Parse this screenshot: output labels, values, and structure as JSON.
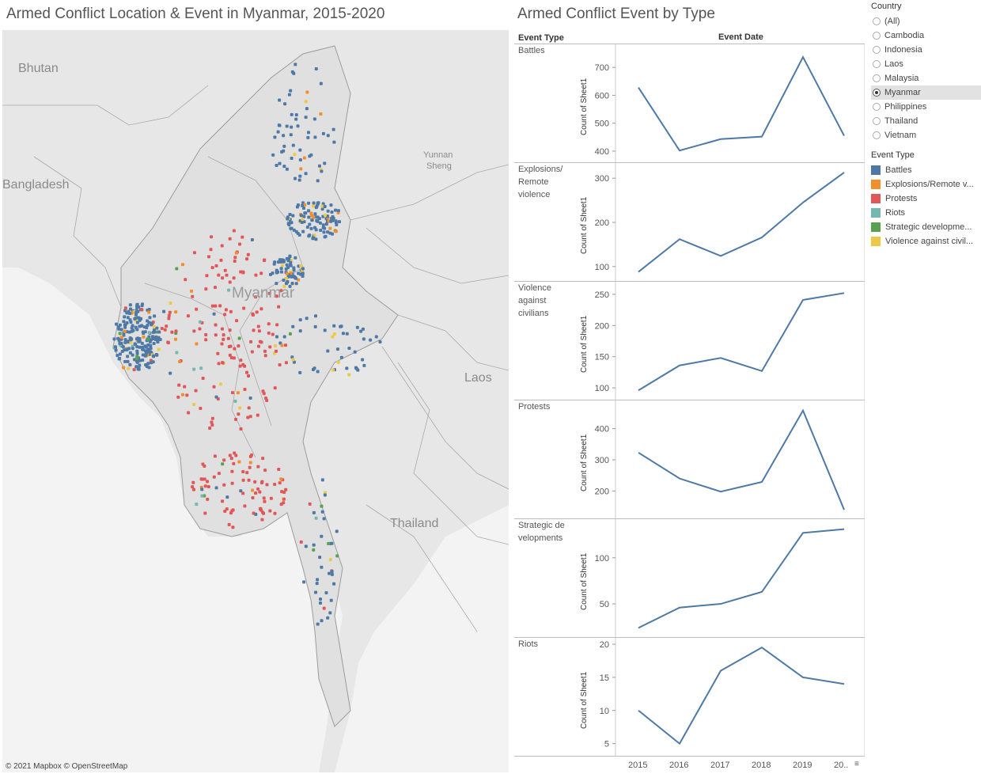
{
  "map_title": "Armed Conflict Location & Event in Myanmar, 2015-2020",
  "lines_title": "Armed Conflict Event by Type",
  "map": {
    "labels": {
      "bhutan": "Bhutan",
      "bangladesh": "Bangladesh",
      "yunnan": "Yunnan",
      "sheng": "Sheng",
      "myanmar": "Myanmar",
      "laos": "Laos",
      "thailand": "Thailand"
    },
    "credit": "© 2021 Mapbox  © OpenStreetMap"
  },
  "columns": {
    "event_type": "Event Type",
    "event_date": "Event Date"
  },
  "y_axis_label": "Count of Sheet1",
  "x_ticks": [
    "2015",
    "2016",
    "2017",
    "2018",
    "2019",
    "20.."
  ],
  "country_filter": {
    "title": "Country",
    "options": [
      "(All)",
      "Cambodia",
      "Indonesia",
      "Laos",
      "Malaysia",
      "Myanmar",
      "Philippines",
      "Thailand",
      "Vietnam"
    ],
    "selected": "Myanmar"
  },
  "legend": {
    "title": "Event Type",
    "items": [
      {
        "label": "Battles",
        "color": "#4e79a7"
      },
      {
        "label": "Explosions/Remote v...",
        "color": "#f28e2b"
      },
      {
        "label": "Protests",
        "color": "#e15759"
      },
      {
        "label": "Riots",
        "color": "#76b7b2"
      },
      {
        "label": "Strategic developme...",
        "color": "#59a14f"
      },
      {
        "label": "Violence against civil...",
        "color": "#edc948"
      }
    ]
  },
  "chart_data": [
    {
      "type": "line",
      "row_label": "Battles",
      "x": [
        2015,
        2016,
        2017,
        2018,
        2019,
        2020
      ],
      "values": [
        628,
        402,
        443,
        452,
        737,
        455
      ],
      "ylim": [
        380,
        760
      ],
      "yticks": [
        400,
        500,
        600,
        700
      ],
      "ylabel": "Count of Sheet1"
    },
    {
      "type": "line",
      "row_label": "Explosions/ Remote violence",
      "x": [
        2015,
        2016,
        2017,
        2018,
        2019,
        2020
      ],
      "values": [
        88,
        162,
        124,
        166,
        245,
        313
      ],
      "ylim": [
        80,
        320
      ],
      "yticks": [
        100,
        200,
        300
      ],
      "ylabel": "Count of Sheet1"
    },
    {
      "type": "line",
      "row_label": "Violence against civilians",
      "x": [
        2015,
        2016,
        2017,
        2018,
        2019,
        2020
      ],
      "values": [
        96,
        136,
        148,
        127,
        241,
        252
      ],
      "ylim": [
        90,
        260
      ],
      "yticks": [
        100,
        150,
        200,
        250
      ],
      "ylabel": "Count of Sheet1"
    },
    {
      "type": "line",
      "row_label": "Protests",
      "x": [
        2015,
        2016,
        2017,
        2018,
        2019,
        2020
      ],
      "values": [
        323,
        240,
        198,
        229,
        458,
        140
      ],
      "ylim": [
        130,
        470
      ],
      "yticks": [
        200,
        300,
        400
      ],
      "ylabel": "Count of Sheet1"
    },
    {
      "type": "line",
      "row_label": "Strategic de velopments",
      "x": [
        2015,
        2016,
        2017,
        2018,
        2019,
        2020
      ],
      "values": [
        24,
        46,
        50,
        63,
        127,
        131
      ],
      "ylim": [
        20,
        135
      ],
      "yticks": [
        50,
        100
      ],
      "ylabel": "Count of Sheet1"
    },
    {
      "type": "line",
      "row_label": "Riots",
      "x": [
        2015,
        2016,
        2017,
        2018,
        2019,
        2020
      ],
      "values": [
        10,
        5,
        16,
        19.5,
        15,
        14
      ],
      "ylim": [
        4,
        20
      ],
      "yticks": [
        5,
        10,
        15,
        20
      ],
      "ylabel": "Count of Sheet1"
    }
  ]
}
